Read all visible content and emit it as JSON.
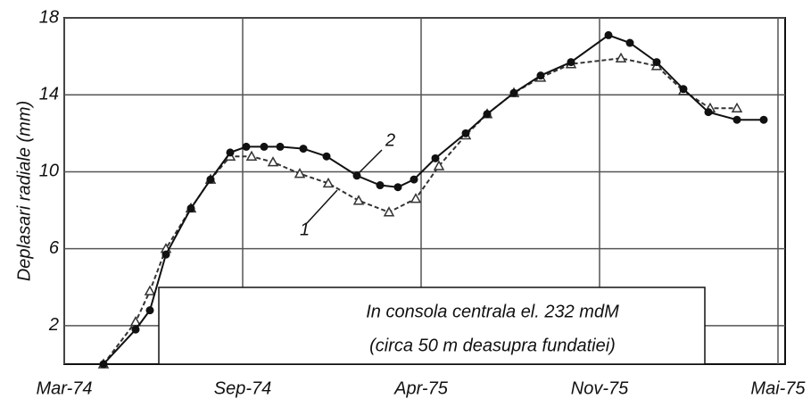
{
  "chart_data": {
    "type": "line",
    "ylabel": "Deplasari radiale (mm)",
    "xlim": [
      0,
      4.04
    ],
    "xticks": [
      {
        "value": 0,
        "label": "Mar-74"
      },
      {
        "value": 1,
        "label": "Sep-74"
      },
      {
        "value": 2,
        "label": "Apr-75"
      },
      {
        "value": 3,
        "label": "Nov-75"
      },
      {
        "value": 4,
        "label": "Mai-75"
      }
    ],
    "ylim": [
      0,
      18
    ],
    "yticks": [
      2,
      6,
      10,
      14,
      18
    ],
    "grid": true,
    "annotations": [
      "1",
      "2",
      "In consola centrala el. 232 mdM",
      "(circa 50 m deasupra fundatiei)"
    ],
    "series": [
      {
        "name": "1",
        "color": "#333333",
        "marker": "triangle",
        "x": [
          0.22,
          0.4,
          0.48,
          0.57,
          0.71,
          0.82,
          0.93,
          1.05,
          1.17,
          1.32,
          1.48,
          1.65,
          1.82,
          1.97,
          2.1,
          2.25,
          2.37,
          2.52,
          2.67,
          2.84,
          3.12,
          3.32,
          3.47,
          3.62,
          3.77
        ],
        "values": [
          0,
          2.2,
          3.8,
          6,
          8.1,
          9.6,
          10.8,
          10.8,
          10.5,
          9.9,
          9.4,
          8.5,
          7.9,
          8.6,
          10.3,
          11.9,
          13,
          14.1,
          14.9,
          15.6,
          15.9,
          15.5,
          14.2,
          13.3,
          13.3
        ]
      },
      {
        "name": "2",
        "color": "#111111",
        "marker": "circle",
        "x": [
          0.22,
          0.4,
          0.48,
          0.57,
          0.71,
          0.82,
          0.93,
          1.02,
          1.12,
          1.21,
          1.34,
          1.47,
          1.64,
          1.77,
          1.87,
          1.96,
          2.08,
          2.25,
          2.37,
          2.52,
          2.67,
          2.84,
          3.05,
          3.17,
          3.32,
          3.47,
          3.61,
          3.77,
          3.92
        ],
        "values": [
          0,
          1.8,
          2.8,
          5.7,
          8.1,
          9.6,
          11,
          11.3,
          11.3,
          11.3,
          11.2,
          10.8,
          9.8,
          9.3,
          9.2,
          9.6,
          10.7,
          12,
          13,
          14.1,
          15,
          15.7,
          17.1,
          16.7,
          15.7,
          14.3,
          13.1,
          12.7,
          12.7
        ]
      }
    ]
  }
}
